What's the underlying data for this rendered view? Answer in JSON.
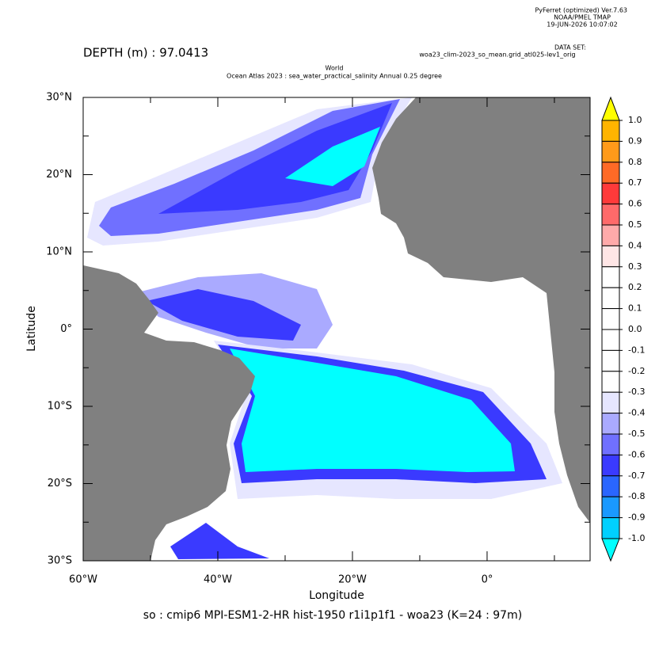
{
  "chart_data": {
    "type": "contour",
    "header": [
      "PyFerret (optimized) Ver.7.63",
      "NOAA/PMEL TMAP",
      "19-JUN-2026 10:07:02"
    ],
    "dataset_label": "DATA SET:",
    "dataset": "woa23_clim-2023_so_mean.grid_atl025-lev1_orig",
    "depth_label": "DEPTH (m) : 97.0413",
    "title": "World",
    "subtitle": "Ocean Atlas 2023 : sea_water_practical_salinity Annual  0.25 degree",
    "xlabel": "Longitude",
    "ylabel": "Latitude",
    "caption": "so : cmip6 MPI-ESM1-2-HR hist-1950 r1i1p1f1 - woa23  (K=24 : 97m)",
    "xlim": [
      -60,
      15.3
    ],
    "ylim": [
      -30,
      30
    ],
    "xticks": [
      {
        "value": -60,
        "label": "60°W"
      },
      {
        "value": -40,
        "label": "40°W"
      },
      {
        "value": -20,
        "label": "20°W"
      },
      {
        "value": 0,
        "label": "0°"
      }
    ],
    "xminor": [
      -50,
      -30,
      -10,
      10
    ],
    "yticks": [
      {
        "value": 30,
        "label": "30°N"
      },
      {
        "value": 20,
        "label": "20°N"
      },
      {
        "value": 10,
        "label": "10°N"
      },
      {
        "value": 0,
        "label": "0°"
      },
      {
        "value": -10,
        "label": "10°S"
      },
      {
        "value": -20,
        "label": "20°S"
      },
      {
        "value": -30,
        "label": "30°S"
      }
    ],
    "yminor": [
      25,
      15,
      5,
      -5,
      -15,
      -25
    ],
    "land_color": "#808080",
    "colorbar": {
      "levels": [
        {
          "value": 1,
          "label": "1.0"
        },
        0.9,
        0.8,
        0.7,
        0.6,
        0.5,
        0.4,
        0.3,
        0.2,
        0.1,
        {
          "value": 0,
          "label": "0.0"
        },
        -0.1,
        -0.2,
        -0.3,
        -0.4,
        -0.5,
        -0.6,
        -0.7,
        -0.8,
        -0.9,
        {
          "value": -1,
          "label": "-1.0"
        }
      ],
      "colors": [
        "#ffb400",
        "#ff9a1a",
        "#ff6a26",
        "#ff3a3a",
        "#ff6a6a",
        "#ffaaaa",
        "#ffe6e6",
        "#ffffff",
        "#ffffff",
        "#ffffff",
        "#ffffff",
        "#ffffff",
        "#ffffff",
        "#e6e6ff",
        "#aaaaff",
        "#7070ff",
        "#3a3aff",
        "#2a66ff",
        "#1a99ff",
        "#00d0ff"
      ],
      "over_color": "#ffff00",
      "under_color": "#00ffff"
    }
  }
}
